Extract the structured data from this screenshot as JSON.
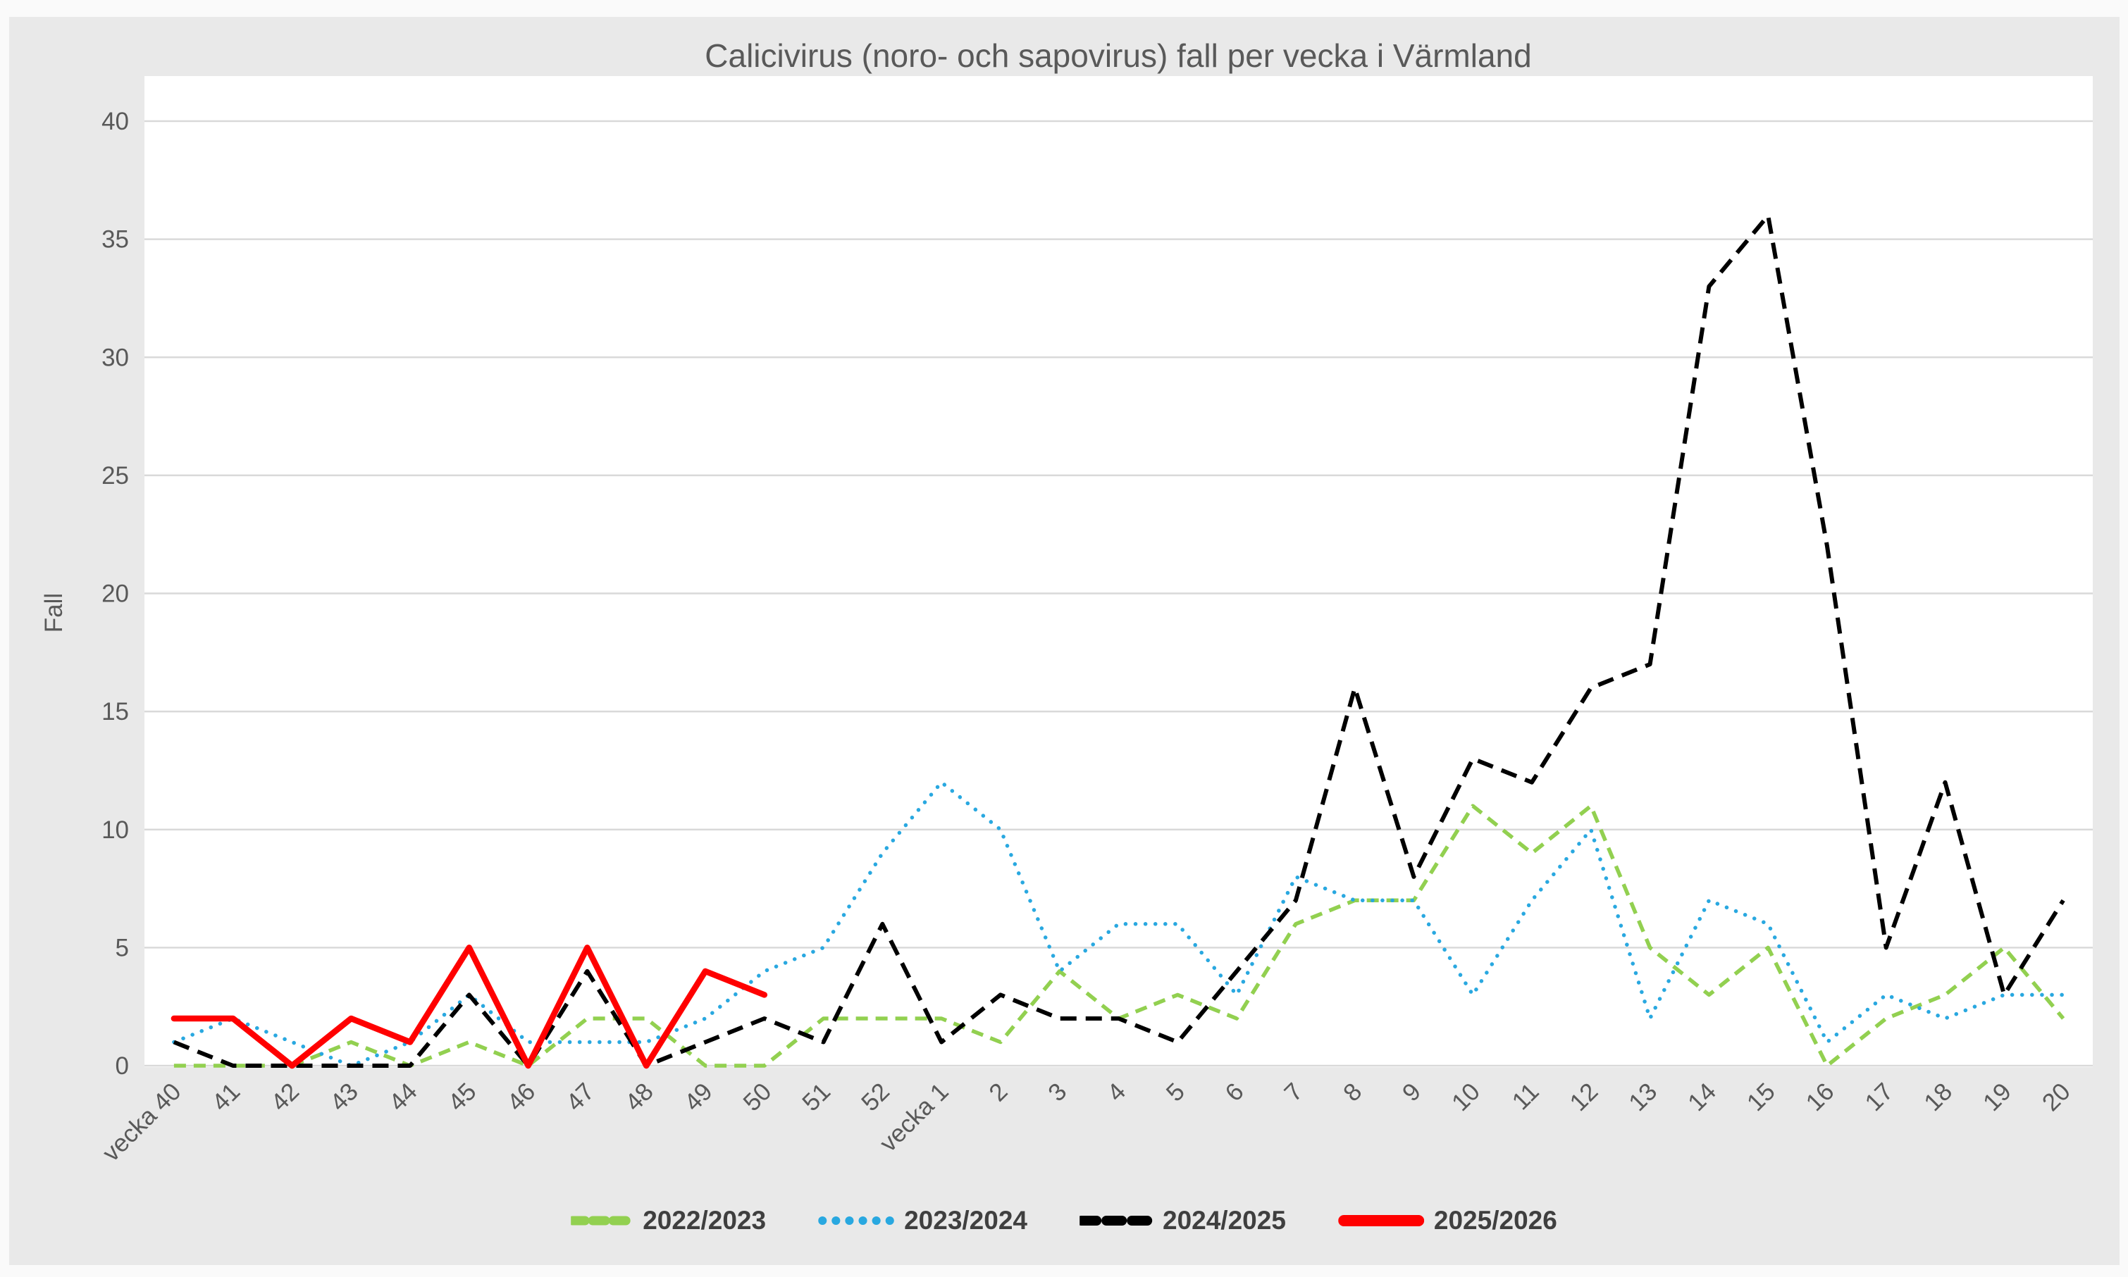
{
  "chart_data": {
    "type": "line",
    "title": "Calicivirus (noro- och sapovirus) fall per vecka i Värmland",
    "ylabel": "Fall",
    "xlabel": "",
    "ylim": [
      0,
      40
    ],
    "ytick_step": 5,
    "yticks": [
      0,
      5,
      10,
      15,
      20,
      25,
      30,
      35,
      40
    ],
    "grid": true,
    "legend_position": "bottom",
    "axis_text_color": "#595959",
    "gridline_color": "#D9D9D9",
    "background": "#E9E9E9",
    "plot_background": "#FFFFFF",
    "categories": [
      "vecka 40",
      "41",
      "42",
      "43",
      "44",
      "45",
      "46",
      "47",
      "48",
      "49",
      "50",
      "51",
      "52",
      "vecka 1",
      "2",
      "3",
      "4",
      "5",
      "6",
      "7",
      "8",
      "9",
      "10",
      "11",
      "12",
      "13",
      "14",
      "15",
      "16",
      "17",
      "18",
      "19",
      "20"
    ],
    "series": [
      {
        "name": "2022/2023",
        "color": "#92D050",
        "style": "dashed",
        "values": [
          0,
          0,
          0,
          1,
          0,
          1,
          0,
          2,
          2,
          0,
          0,
          2,
          2,
          2,
          1,
          4,
          2,
          3,
          2,
          6,
          7,
          7,
          11,
          9,
          11,
          5,
          3,
          5,
          0,
          2,
          3,
          5,
          2
        ]
      },
      {
        "name": "2023/2024",
        "color": "#29A8E0",
        "style": "dotted",
        "values": [
          1,
          2,
          1,
          0,
          1,
          3,
          1,
          1,
          1,
          2,
          4,
          5,
          9,
          12,
          10,
          4,
          6,
          6,
          3,
          8,
          7,
          7,
          3,
          7,
          10,
          2,
          7,
          6,
          1,
          3,
          2,
          3,
          3
        ]
      },
      {
        "name": "2024/2025",
        "color": "#000000",
        "style": "dashed-long",
        "values": [
          1,
          0,
          0,
          0,
          0,
          3,
          0,
          4,
          0,
          1,
          2,
          1,
          6,
          1,
          3,
          2,
          2,
          1,
          4,
          7,
          16,
          8,
          13,
          12,
          16,
          17,
          33,
          36,
          22,
          5,
          12,
          3,
          7
        ]
      },
      {
        "name": "2025/2026",
        "color": "#FF0000",
        "style": "solid",
        "values": [
          2,
          2,
          0,
          2,
          1,
          5,
          0,
          5,
          0,
          4,
          3,
          null,
          null,
          null,
          null,
          null,
          null,
          null,
          null,
          null,
          null,
          null,
          null,
          null,
          null,
          null,
          null,
          null,
          null,
          null,
          null,
          null,
          null
        ]
      }
    ]
  }
}
